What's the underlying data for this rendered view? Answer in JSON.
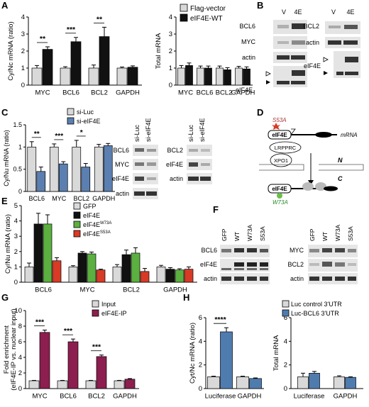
{
  "panels": {
    "A": {
      "letter": "A",
      "left": {
        "ylabel": "Cy/Nc mRNA (ratio)",
        "ylim": [
          0,
          4
        ],
        "yticks": [
          "0",
          "1",
          "2",
          "3",
          "4"
        ],
        "categories": [
          "MYC",
          "BCL6",
          "BCL2",
          "GAPDH"
        ],
        "sig": [
          "**",
          "***",
          "**",
          ""
        ]
      },
      "right": {
        "ylabel": "Total mRNA",
        "ylim": [
          0,
          4
        ],
        "yticks": [
          "0",
          "1",
          "2",
          "3",
          "4"
        ],
        "categories": [
          "MYC",
          "BCL6",
          "BCL2",
          "GAPDH"
        ]
      },
      "legend": [
        "Flag-vector",
        "eIF4E-WT"
      ]
    },
    "B": {
      "letter": "B",
      "lanes": [
        "V",
        "4E"
      ],
      "blot1_labels": [
        "BCL6",
        "MYC",
        "actin",
        "eIF4E"
      ],
      "blot2_labels": [
        "BCL2",
        "actin",
        "eIF4E"
      ]
    },
    "C": {
      "letter": "C",
      "ylabel": "Cy/Nu mRNA (ratio)",
      "ylim": [
        0,
        1.5
      ],
      "yticks": [
        "0",
        "0.5",
        "1",
        "1.5"
      ],
      "categories": [
        "BCL6",
        "MYC",
        "BCL2",
        "GAPDH"
      ],
      "sig": [
        "**",
        "***",
        "*",
        ""
      ],
      "legend": [
        "si-Luc",
        "si-eIF4E"
      ],
      "lanes": [
        "si-Luc",
        "si-eIF4E"
      ],
      "blot1_labels": [
        "BCL6",
        "MYC",
        "eIF4E",
        "actin"
      ],
      "blot2_labels": [
        "BCL2",
        "eIF4E",
        "actin"
      ]
    },
    "D": {
      "letter": "D",
      "s53a": "S53A",
      "eif4e": "eIF4E",
      "mrna": "mRNA",
      "lrpprc": "LRPPRC",
      "xpo1": "XPO1",
      "n": "N",
      "c": "C",
      "w73a": "W73A"
    },
    "E": {
      "letter": "E",
      "ylabel": "Cy/Nu mRNA (ratio)",
      "ylim": [
        0,
        5
      ],
      "yticks": [
        "0",
        "1",
        "2",
        "3",
        "4",
        "5"
      ],
      "categories": [
        "BCL6",
        "MYC",
        "BCL2",
        "GAPDH"
      ],
      "legend": [
        "GFP",
        "eIF4E",
        "eIF4E",
        "eIF4E"
      ],
      "legend_sup": [
        "",
        "",
        "W73A",
        "S53A"
      ]
    },
    "F": {
      "letter": "F",
      "lanes": [
        "GFP",
        "WT",
        "W73A",
        "S53A"
      ],
      "blot1_labels": [
        "BCL6",
        "eIF4E",
        "actin"
      ],
      "blot2_labels": [
        "MYC",
        "BCL2",
        "actin"
      ]
    },
    "G": {
      "letter": "G",
      "ylabel": "Fold enrichment",
      "ylabel2": "(eIF4E-IP vs. nuclear input)",
      "ylim": [
        0,
        10
      ],
      "yticks": [
        "0",
        "2",
        "4",
        "6",
        "8",
        "10"
      ],
      "categories": [
        "MYC",
        "BCL6",
        "BCL2",
        "GAPDH"
      ],
      "sig": [
        "***",
        "***",
        "***",
        ""
      ],
      "legend": [
        "Input",
        "eIF4E-IP"
      ]
    },
    "H": {
      "letter": "H",
      "left": {
        "ylabel": "Cyt/Nc mRNA (ratio)",
        "ylim": [
          0,
          6
        ],
        "yticks": [
          "0",
          "2",
          "4",
          "6"
        ],
        "categories": [
          "Luciferase",
          "GAPDH"
        ],
        "sig": [
          "****",
          ""
        ]
      },
      "right": {
        "ylabel": "Total mRNA",
        "ylim": [
          0,
          6
        ],
        "yticks": [
          "0",
          "2",
          "4",
          "6"
        ],
        "categories": [
          "Luciferase",
          "GAPDH"
        ]
      },
      "legend": [
        "Luc control 3'UTR",
        "Luc-BCL6 3'UTR"
      ]
    }
  },
  "colors": {
    "light_gray": "#d9d9d9",
    "black": "#111111",
    "blue": "#5b7fb0",
    "green": "#5bb040",
    "red": "#d83a25",
    "maroon": "#8c1f4f",
    "steel": "#4f7caf"
  },
  "chart_data": [
    {
      "panel": "A-left",
      "type": "bar",
      "categories": [
        "MYC",
        "BCL6",
        "BCL2",
        "GAPDH"
      ],
      "ylabel": "Cy/Nc mRNA (ratio)",
      "ylim": [
        0,
        4
      ],
      "series": [
        {
          "name": "Flag-vector",
          "values": [
            1.0,
            1.0,
            1.0,
            1.0
          ],
          "errors": [
            0.15,
            0.08,
            0.18,
            0.06
          ]
        },
        {
          "name": "eIF4E-WT",
          "values": [
            2.1,
            2.55,
            2.85,
            1.05
          ],
          "errors": [
            0.15,
            0.25,
            0.55,
            0.08
          ]
        }
      ]
    },
    {
      "panel": "A-right",
      "type": "bar",
      "categories": [
        "MYC",
        "BCL6",
        "BCL2",
        "GAPDH"
      ],
      "ylabel": "Total mRNA",
      "ylim": [
        0,
        4
      ],
      "series": [
        {
          "name": "Flag-vector",
          "values": [
            1.0,
            1.0,
            1.0,
            1.0
          ],
          "errors": [
            0.15,
            0.12,
            0.12,
            0.1
          ]
        },
        {
          "name": "eIF4E-WT",
          "values": [
            1.15,
            1.0,
            0.9,
            0.95
          ],
          "errors": [
            0.15,
            0.12,
            0.12,
            0.12
          ]
        }
      ]
    },
    {
      "panel": "C",
      "type": "bar",
      "categories": [
        "BCL6",
        "MYC",
        "BCL2",
        "GAPDH"
      ],
      "ylabel": "Cy/Nu mRNA (ratio)",
      "ylim": [
        0,
        1.5
      ],
      "series": [
        {
          "name": "si-Luc",
          "values": [
            1.0,
            1.0,
            1.0,
            1.0
          ],
          "errors": [
            0.12,
            0.07,
            0.15,
            0.06
          ]
        },
        {
          "name": "si-eIF4E",
          "values": [
            0.45,
            0.62,
            0.55,
            1.03
          ],
          "errors": [
            0.1,
            0.05,
            0.08,
            0.05
          ]
        }
      ]
    },
    {
      "panel": "E",
      "type": "bar",
      "categories": [
        "BCL6",
        "MYC",
        "BCL2",
        "GAPDH"
      ],
      "ylabel": "Cy/Nu mRNA (ratio)",
      "ylim": [
        0,
        5
      ],
      "series": [
        {
          "name": "GFP",
          "values": [
            1.0,
            1.0,
            1.0,
            1.0
          ],
          "errors": [
            0.25,
            0.08,
            0.15,
            0.1
          ]
        },
        {
          "name": "eIF4E",
          "values": [
            3.8,
            1.9,
            1.8,
            0.85
          ],
          "errors": [
            0.7,
            0.1,
            0.3,
            0.1
          ]
        },
        {
          "name": "eIF4E W73A",
          "values": [
            3.8,
            1.85,
            1.9,
            0.8
          ],
          "errors": [
            0.6,
            0.12,
            0.35,
            0.08
          ]
        },
        {
          "name": "eIF4E S53A",
          "values": [
            1.4,
            0.8,
            0.7,
            0.85
          ],
          "errors": [
            0.2,
            0.05,
            0.2,
            0.15
          ]
        }
      ]
    },
    {
      "panel": "G",
      "type": "bar",
      "categories": [
        "MYC",
        "BCL6",
        "BCL2",
        "GAPDH"
      ],
      "ylabel": "Fold enrichment (eIF4E-IP vs. nuclear input)",
      "ylim": [
        0,
        10
      ],
      "series": [
        {
          "name": "Input",
          "values": [
            1.0,
            1.0,
            1.0,
            1.0
          ],
          "errors": [
            0.05,
            0.05,
            0.05,
            0.05
          ]
        },
        {
          "name": "eIF4E-IP",
          "values": [
            7.2,
            6.0,
            4.1,
            1.2
          ],
          "errors": [
            0.3,
            0.35,
            0.2,
            0.08
          ]
        }
      ]
    },
    {
      "panel": "H-left",
      "type": "bar",
      "categories": [
        "Luciferase",
        "GAPDH"
      ],
      "ylabel": "Cyt/Nc mRNA (ratio)",
      "ylim": [
        0,
        6
      ],
      "series": [
        {
          "name": "Luc control 3'UTR",
          "values": [
            1.0,
            1.0
          ],
          "errors": [
            0.05,
            0.05
          ]
        },
        {
          "name": "Luc-BCL6 3'UTR",
          "values": [
            4.8,
            0.85
          ],
          "errors": [
            0.35,
            0.05
          ]
        }
      ]
    },
    {
      "panel": "H-right",
      "type": "bar",
      "categories": [
        "Luciferase",
        "GAPDH"
      ],
      "ylabel": "Total mRNA",
      "ylim": [
        0,
        6
      ],
      "series": [
        {
          "name": "Luc control 3'UTR",
          "values": [
            1.0,
            1.0
          ],
          "errors": [
            0.3,
            0.08
          ]
        },
        {
          "name": "Luc-BCL6 3'UTR",
          "values": [
            1.3,
            0.95
          ],
          "errors": [
            0.15,
            0.05
          ]
        }
      ]
    }
  ]
}
